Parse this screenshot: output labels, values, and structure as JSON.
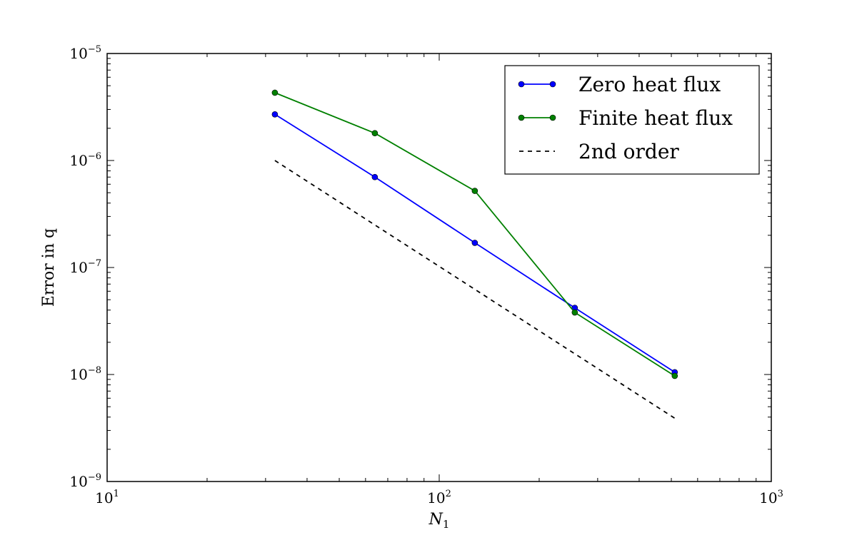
{
  "chart_data": {
    "type": "line",
    "xlabel": "N",
    "xlabel_subscript": "1",
    "ylabel": "Error in q",
    "x_scale": "log",
    "y_scale": "log",
    "xlim": [
      10,
      1000
    ],
    "ylim": [
      1e-09,
      1e-05
    ],
    "x_ticks": [
      {
        "value": 10,
        "base": "10",
        "exp": "1"
      },
      {
        "value": 100,
        "base": "10",
        "exp": "2"
      },
      {
        "value": 1000,
        "base": "10",
        "exp": "3"
      }
    ],
    "y_ticks": [
      {
        "value": 1e-09,
        "base": "10",
        "exp": "−9"
      },
      {
        "value": 1e-08,
        "base": "10",
        "exp": "−8"
      },
      {
        "value": 1e-07,
        "base": "10",
        "exp": "−7"
      },
      {
        "value": 1e-06,
        "base": "10",
        "exp": "−6"
      },
      {
        "value": 1e-05,
        "base": "10",
        "exp": "−5"
      }
    ],
    "grid": false,
    "legend_position": "top-right",
    "series": [
      {
        "name": "Zero heat flux",
        "color": "#0000ff",
        "style": "solid",
        "marker": "circle",
        "x": [
          32,
          64,
          128,
          256,
          512
        ],
        "y": [
          2.7e-06,
          7e-07,
          1.7e-07,
          4.2e-08,
          1.05e-08
        ]
      },
      {
        "name": "Finite heat flux",
        "color": "#008000",
        "style": "solid",
        "marker": "circle",
        "x": [
          32,
          64,
          128,
          256,
          512
        ],
        "y": [
          4.3e-06,
          1.8e-06,
          5.2e-07,
          3.8e-08,
          9.7e-09
        ]
      },
      {
        "name": "2nd order",
        "color": "#000000",
        "style": "dashed",
        "marker": "none",
        "x": [
          32,
          512
        ],
        "y": [
          1e-06,
          3.9e-09
        ]
      }
    ]
  }
}
